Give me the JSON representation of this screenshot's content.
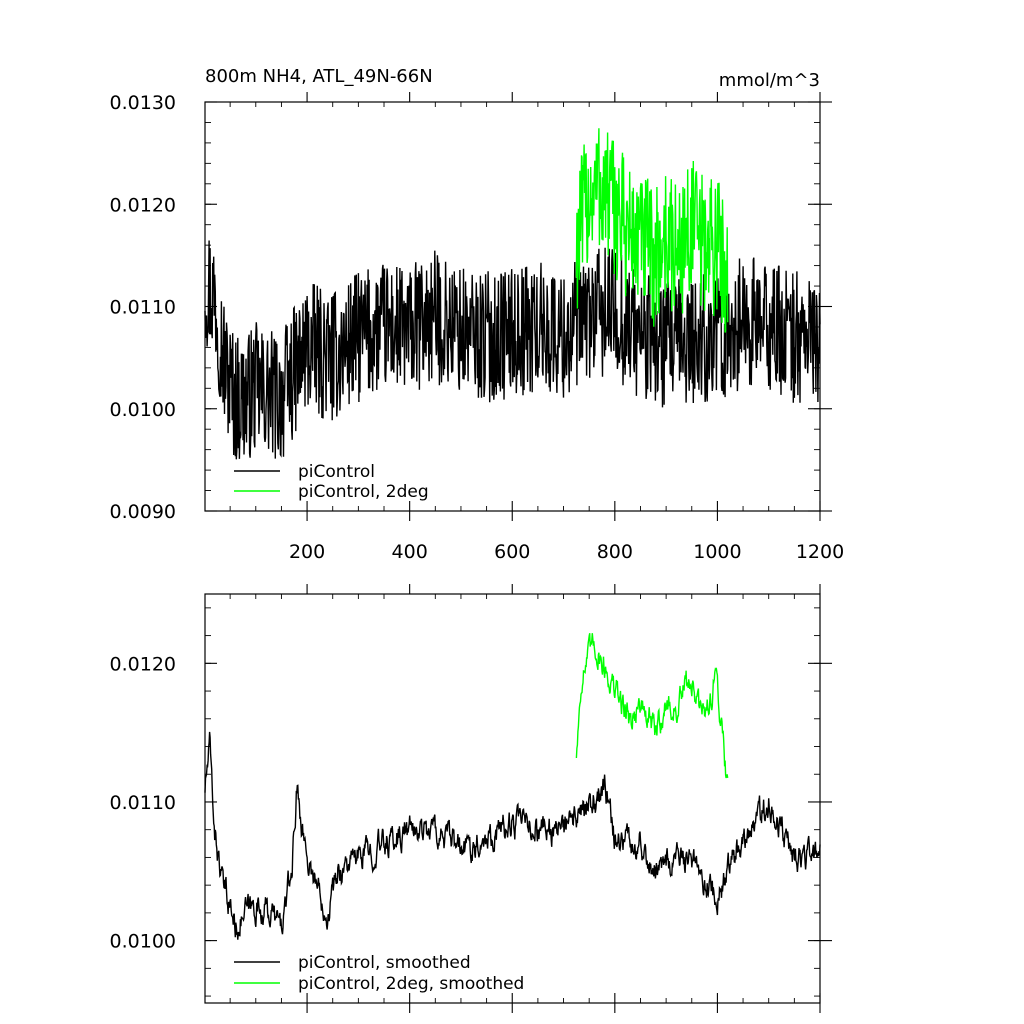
{
  "chart_data": [
    {
      "type": "line",
      "title": "800m NH4, ATL_49N-66N",
      "units": "mmol/m^3",
      "xlabel": "",
      "ylabel": "",
      "xlim": [
        1,
        1200
      ],
      "ylim": [
        0.009,
        0.013
      ],
      "x_ticks": [
        200,
        400,
        600,
        800,
        1000,
        1200
      ],
      "y_ticks": [
        "0.0090",
        "0.0100",
        "0.0110",
        "0.0120",
        "0.0130"
      ],
      "legend": {
        "placement": "bottom-left",
        "entries": [
          "piControl",
          "piControl, 2deg"
        ]
      },
      "grid": false,
      "series": [
        {
          "name": "piControl",
          "color": "#000000",
          "x_start": 1,
          "x_end": 1200,
          "anchors_x": [
            1,
            20,
            40,
            60,
            80,
            100,
            120,
            150,
            180,
            200,
            250,
            300,
            350,
            400,
            450,
            500,
            550,
            600,
            650,
            700,
            750,
            800,
            850,
            900,
            950,
            1000,
            1050,
            1100,
            1150,
            1200
          ],
          "anchors_y": [
            0.01125,
            0.0111,
            0.0104,
            0.0101,
            0.0101,
            0.0102,
            0.01015,
            0.0101,
            0.0104,
            0.0106,
            0.0105,
            0.0107,
            0.0108,
            0.01075,
            0.0109,
            0.01075,
            0.0107,
            0.01075,
            0.0108,
            0.0107,
            0.0109,
            0.01095,
            0.0107,
            0.0106,
            0.01065,
            0.0107,
            0.01085,
            0.0108,
            0.0107,
            0.0107
          ],
          "noise_amplitude": 0.00065
        },
        {
          "name": "piControl, 2deg",
          "color": "#00ff00",
          "x_start": 725,
          "x_end": 1020,
          "anchors_x": [
            725,
            750,
            770,
            800,
            830,
            860,
            880,
            900,
            920,
            950,
            970,
            1000,
            1020
          ],
          "anchors_y": [
            0.0116,
            0.0121,
            0.0122,
            0.01195,
            0.0117,
            0.0116,
            0.01145,
            0.0117,
            0.0115,
            0.0118,
            0.0116,
            0.0116,
            0.0113
          ],
          "noise_amplitude": 0.0007
        }
      ]
    },
    {
      "type": "line",
      "title": "",
      "xlabel": "",
      "ylabel": "",
      "xlim": [
        1,
        1200
      ],
      "ylim": [
        0.00955,
        0.0125
      ],
      "x_ticks": [],
      "y_ticks": [
        "0.0100",
        "0.0110",
        "0.0120"
      ],
      "legend": {
        "placement": "bottom-left",
        "entries": [
          "piControl, smoothed",
          "piControl, 2deg, smoothed"
        ]
      },
      "grid": false,
      "series": [
        {
          "name": "piControl, smoothed",
          "color": "#000000",
          "x_start": 1,
          "x_end": 1200,
          "anchors_x": [
            1,
            10,
            20,
            35,
            50,
            60,
            80,
            100,
            130,
            150,
            170,
            180,
            200,
            240,
            260,
            300,
            350,
            400,
            450,
            500,
            550,
            600,
            650,
            700,
            750,
            780,
            800,
            850,
            880,
            900,
            950,
            980,
            1000,
            1050,
            1100,
            1150,
            1200
          ],
          "anchors_y": [
            0.0111,
            0.0114,
            0.0108,
            0.0104,
            0.01025,
            0.0101,
            0.0102,
            0.01025,
            0.0102,
            0.0101,
            0.0105,
            0.0111,
            0.0106,
            0.0102,
            0.0105,
            0.0106,
            0.0107,
            0.0108,
            0.0108,
            0.01065,
            0.01075,
            0.01085,
            0.0108,
            0.0108,
            0.01095,
            0.0111,
            0.01075,
            0.0107,
            0.0105,
            0.0106,
            0.01055,
            0.0104,
            0.0103,
            0.01075,
            0.011,
            0.0106,
            0.01065
          ],
          "noise_amplitude": 0.00022
        },
        {
          "name": "piControl, 2deg, smoothed",
          "color": "#00ff00",
          "x_start": 725,
          "x_end": 1020,
          "anchors_x": [
            725,
            735,
            760,
            800,
            830,
            850,
            880,
            900,
            920,
            945,
            970,
            1000,
            1020
          ],
          "anchors_y": [
            0.01135,
            0.0119,
            0.01215,
            0.0118,
            0.0116,
            0.0117,
            0.0115,
            0.0117,
            0.01165,
            0.0119,
            0.0116,
            0.0119,
            0.0111
          ],
          "noise_amplitude": 0.00022
        }
      ]
    }
  ]
}
